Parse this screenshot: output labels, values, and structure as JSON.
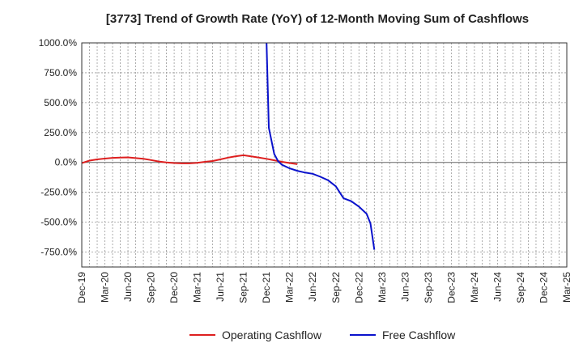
{
  "chart_data": {
    "type": "line",
    "title": "[3773]  Trend of Growth Rate (YoY) of 12-Month Moving Sum of Cashflows",
    "xlabel": "",
    "ylabel": "",
    "ylim": [
      -875,
      1000
    ],
    "y_ticks": [
      {
        "value": 1000,
        "label": "1000.0%"
      },
      {
        "value": 750,
        "label": "750.0%"
      },
      {
        "value": 500,
        "label": "500.0%"
      },
      {
        "value": 250,
        "label": "250.0%"
      },
      {
        "value": 0,
        "label": "0.0%"
      },
      {
        "value": -250,
        "label": "-250.0%"
      },
      {
        "value": -500,
        "label": "-500.0%"
      },
      {
        "value": -750,
        "label": "-750.0%"
      }
    ],
    "x_ticks": [
      "Dec-19",
      "Mar-20",
      "Jun-20",
      "Sep-20",
      "Dec-20",
      "Mar-21",
      "Jun-21",
      "Sep-21",
      "Dec-21",
      "Mar-22",
      "Jun-22",
      "Sep-22",
      "Dec-22",
      "Mar-23",
      "Jun-23",
      "Sep-23",
      "Dec-23",
      "Mar-24",
      "Jun-24",
      "Sep-24",
      "Dec-24",
      "Mar-25"
    ],
    "grid": true,
    "legend": "bottom",
    "series": [
      {
        "name": "Operating Cashflow",
        "color": "#dd1f1f",
        "values": [
          -5,
          15,
          25,
          32,
          38,
          40,
          42,
          36,
          30,
          20,
          8,
          0,
          -5,
          -8,
          -8,
          -3,
          5,
          12,
          25,
          40,
          52,
          60,
          50,
          40,
          30,
          18,
          5,
          -5,
          -15,
          null,
          null,
          null,
          null,
          null,
          null,
          null,
          null,
          null,
          null,
          null,
          null,
          null,
          null,
          null,
          null,
          null,
          null,
          null,
          null,
          null,
          null,
          null,
          null,
          null,
          null,
          null,
          null,
          null,
          null,
          null,
          null,
          null,
          null,
          null,
          null,
          null
        ]
      },
      {
        "name": "Free Cashflow",
        "color": "#0a12cc",
        "points": [
          [
            24,
            1000
          ],
          [
            24.3,
            290
          ],
          [
            25,
            70
          ],
          [
            25.5,
            10
          ],
          [
            26,
            -20
          ],
          [
            27,
            -50
          ],
          [
            28,
            -70
          ],
          [
            29,
            -85
          ],
          [
            30,
            -95
          ],
          [
            31,
            -120
          ],
          [
            32,
            -150
          ],
          [
            33,
            -200
          ],
          [
            33.5,
            -250
          ],
          [
            34,
            -300
          ],
          [
            35,
            -325
          ],
          [
            36,
            -370
          ],
          [
            37,
            -430
          ],
          [
            37.5,
            -510
          ],
          [
            38,
            -730
          ]
        ]
      }
    ]
  }
}
